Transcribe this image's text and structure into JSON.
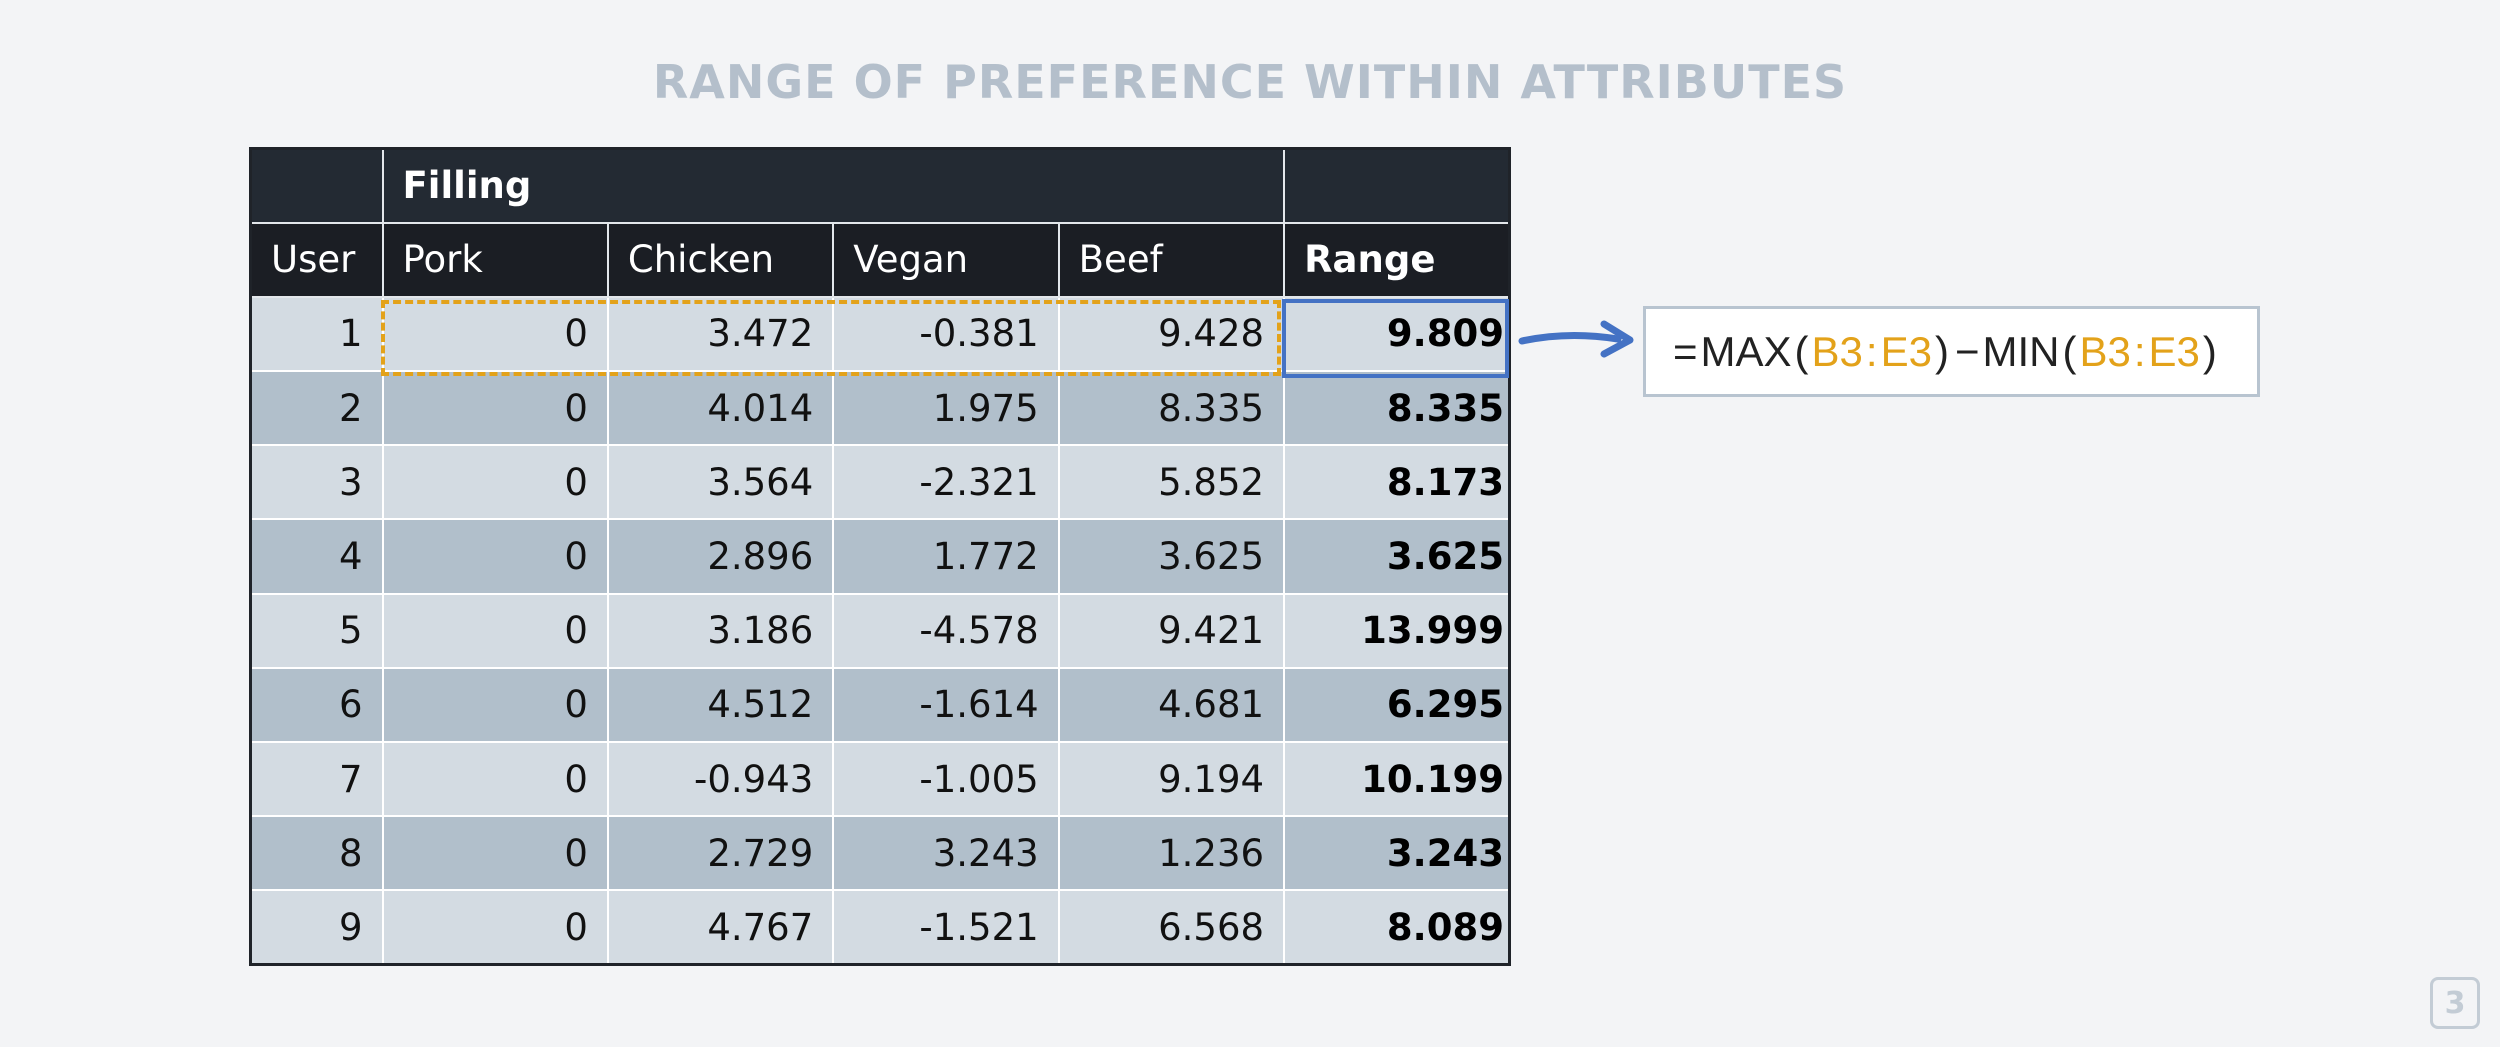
{
  "slide": {
    "title": "RANGE OF PREFERENCE WITHIN ATTRIBUTES",
    "page_number": "3"
  },
  "table": {
    "group_header": "Filling",
    "headers": {
      "user": "User",
      "pork": "Pork",
      "chicken": "Chicken",
      "vegan": "Vegan",
      "beef": "Beef",
      "range": "Range"
    },
    "rows": [
      {
        "user": "1",
        "pork": "0",
        "chicken": "3.472",
        "vegan": "-0.381",
        "beef": "9.428",
        "range": "9.809"
      },
      {
        "user": "2",
        "pork": "0",
        "chicken": "4.014",
        "vegan": "1.975",
        "beef": "8.335",
        "range": "8.335"
      },
      {
        "user": "3",
        "pork": "0",
        "chicken": "3.564",
        "vegan": "-2.321",
        "beef": "5.852",
        "range": "8.173"
      },
      {
        "user": "4",
        "pork": "0",
        "chicken": "2.896",
        "vegan": "1.772",
        "beef": "3.625",
        "range": "3.625"
      },
      {
        "user": "5",
        "pork": "0",
        "chicken": "3.186",
        "vegan": "-4.578",
        "beef": "9.421",
        "range": "13.999"
      },
      {
        "user": "6",
        "pork": "0",
        "chicken": "4.512",
        "vegan": "-1.614",
        "beef": "4.681",
        "range": "6.295"
      },
      {
        "user": "7",
        "pork": "0",
        "chicken": "-0.943",
        "vegan": "-1.005",
        "beef": "9.194",
        "range": "10.199"
      },
      {
        "user": "8",
        "pork": "0",
        "chicken": "2.729",
        "vegan": "3.243",
        "beef": "1.236",
        "range": "3.243"
      },
      {
        "user": "9",
        "pork": "0",
        "chicken": "4.767",
        "vegan": "-1.521",
        "beef": "6.568",
        "range": "8.089"
      }
    ]
  },
  "formula": {
    "equals": "=",
    "max_fn": "MAX",
    "min_fn": "MIN",
    "open_paren": "(",
    "close_paren": ")",
    "minus": "−",
    "ref_start": "B3",
    "colon": ":",
    "ref_end": "E3"
  },
  "colors": {
    "accent_orange": "#e3a21a",
    "accent_blue": "#4472c4",
    "header_dark": "#1b1e24",
    "row_light": "#d3dbe2",
    "row_dark": "#b1bfcb"
  },
  "icons": {
    "arrow": "arrow-right-icon"
  }
}
